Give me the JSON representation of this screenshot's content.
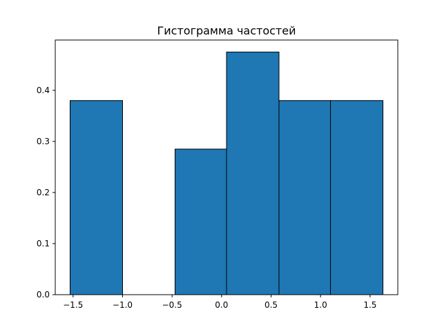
{
  "chart_data": {
    "type": "bar",
    "title": "Гистограмма частостей",
    "xlabel": "",
    "ylabel": "",
    "xlim": [
      -1.68,
      1.78
    ],
    "ylim": [
      0,
      0.4985
    ],
    "x_ticks": [
      -1.5,
      -1.0,
      -0.5,
      0.0,
      0.5,
      1.0,
      1.5
    ],
    "x_tick_labels": [
      "−1.5",
      "−1.0",
      "−0.5",
      "0.0",
      "0.5",
      "1.0",
      "1.5"
    ],
    "y_ticks": [
      0.0,
      0.1,
      0.2,
      0.3,
      0.4
    ],
    "y_tick_labels": [
      "0.0",
      "0.1",
      "0.2",
      "0.3",
      "0.4"
    ],
    "grid": false,
    "bar_color": "#1f77b4",
    "edge_color": "#000000",
    "bins": [
      {
        "left": -1.53,
        "right": -1.0,
        "value": 0.38
      },
      {
        "left": -1.0,
        "right": -0.47,
        "value": 0.0
      },
      {
        "left": -0.47,
        "right": 0.05,
        "value": 0.285
      },
      {
        "left": 0.05,
        "right": 0.58,
        "value": 0.475
      },
      {
        "left": 0.58,
        "right": 1.1,
        "value": 0.38
      },
      {
        "left": 1.1,
        "right": 1.63,
        "value": 0.38
      }
    ]
  }
}
